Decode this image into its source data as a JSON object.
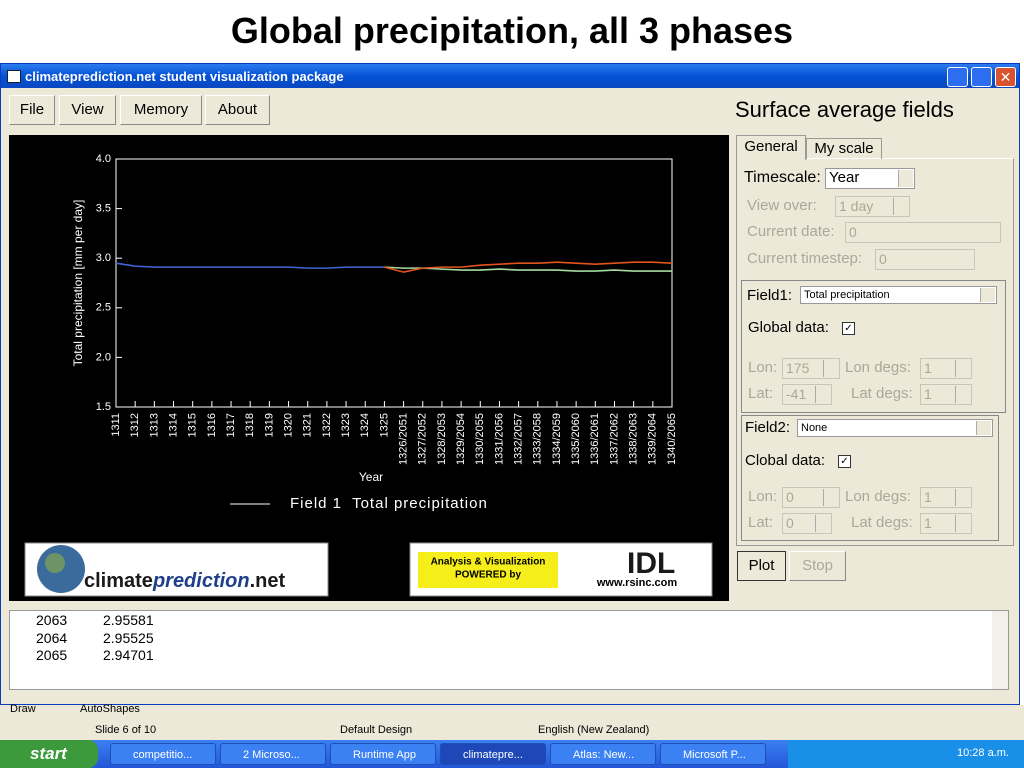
{
  "slide_title": "Global precipitation, all 3 phases",
  "window": {
    "title": "climateprediction.net   student visualization package"
  },
  "menu": [
    "File",
    "View",
    "Memory",
    "About"
  ],
  "panel": {
    "title": "Surface average fields",
    "tabs": [
      "General",
      "My scale"
    ],
    "timescale": {
      "label": "Timescale:",
      "value": "Year"
    },
    "view_over": {
      "label": "View over:",
      "value": "1 day"
    },
    "current_date": {
      "label": "Current date:",
      "value": "0"
    },
    "current_timestep": {
      "label": "Current timestep:",
      "value": "0"
    },
    "field1": {
      "label": "Field1:",
      "value": "Total precipitation",
      "global_label": "Global data:",
      "lon_label": "Lon:",
      "lon": "175",
      "lat_label": "Lat:",
      "lat": "-41",
      "lon_degs_label": "Lon degs:",
      "lon_degs": "1",
      "lat_degs_label": "Lat degs:",
      "lat_degs": "1"
    },
    "field2": {
      "label": "Field2:",
      "value": "None",
      "global_label": "Clobal data:",
      "lon_label": "Lon:",
      "lon": "0",
      "lat_label": "Lat:",
      "lat": "0",
      "lon_degs_label": "Lon degs:",
      "lon_degs": "1",
      "lat_degs_label": "Lat degs:",
      "lat_degs": "1"
    },
    "buttons": [
      "Plot",
      "Stop"
    ]
  },
  "chart_data": {
    "type": "line",
    "x_label": "Year",
    "y_label": "Total precipitation [mm per day]",
    "categories": [
      "1311",
      "1312",
      "1313",
      "1314",
      "1315",
      "1316",
      "1317",
      "1318",
      "1319",
      "1320",
      "1321",
      "1322",
      "1323",
      "1324",
      "1325",
      "1326/2051",
      "1327/2052",
      "1328/2053",
      "1329/2054",
      "1330/2055",
      "1331/2056",
      "1332/2057",
      "1333/2058",
      "1334/2059",
      "1335/2060",
      "1336/2061",
      "1337/2062",
      "1338/2063",
      "1339/2064",
      "1340/2065"
    ],
    "series": [
      {
        "color": "#3f66d8",
        "values": [
          2.95,
          2.92,
          2.91,
          2.91,
          2.91,
          2.91,
          2.91,
          2.91,
          2.91,
          2.91,
          2.9,
          2.9,
          2.91,
          2.91,
          2.91,
          null,
          null,
          null,
          null,
          null,
          null,
          null,
          null,
          null,
          null,
          null,
          null,
          null,
          null,
          null
        ]
      },
      {
        "color": "#a6dc9e",
        "values": [
          null,
          null,
          null,
          null,
          null,
          null,
          null,
          null,
          null,
          null,
          null,
          null,
          null,
          null,
          2.91,
          2.9,
          2.9,
          2.89,
          2.88,
          2.88,
          2.89,
          2.88,
          2.88,
          2.88,
          2.87,
          2.87,
          2.88,
          2.87,
          2.87,
          2.87
        ]
      },
      {
        "color": "#e2541c",
        "values": [
          null,
          null,
          null,
          null,
          null,
          null,
          null,
          null,
          null,
          null,
          null,
          null,
          null,
          null,
          2.91,
          2.86,
          2.9,
          2.91,
          2.91,
          2.93,
          2.94,
          2.95,
          2.95,
          2.96,
          2.95,
          2.94,
          2.95,
          2.96,
          2.96,
          2.95
        ]
      }
    ],
    "legend": {
      "label": "Field 1  Total precipitation",
      "color": "#ffffff"
    },
    "ylim": [
      1.5,
      4.0
    ],
    "yticks": [
      1.5,
      {
        "value": 2,
        "label": "2.0"
      },
      2.5,
      {
        "value": 3,
        "label": "3.0"
      },
      3.5,
      {
        "value": 4,
        "label": "4.0"
      }
    ]
  },
  "logos": {
    "cp": [
      "climate",
      "prediction",
      ".net"
    ],
    "idl_tagline": [
      "Analysis & Visualization",
      "POWERED by"
    ],
    "idl": "IDL",
    "idl_url": "www.rsinc.com"
  },
  "output": {
    "rows": [
      [
        2063,
        2.95581
      ],
      [
        2064,
        2.95525
      ],
      [
        2065,
        2.94701
      ]
    ]
  },
  "toolbar": [
    "Draw",
    "AutoShapes"
  ],
  "status": [
    "Slide 6 of 10",
    "Default Design",
    "English (New Zealand)"
  ],
  "taskbar": {
    "start": "start",
    "items": [
      "competitio...",
      "2 Microso...",
      "Runtime App",
      "climatepre...",
      "Atlas: New...",
      "Microsoft P..."
    ],
    "clock": "10:28 a.m."
  }
}
